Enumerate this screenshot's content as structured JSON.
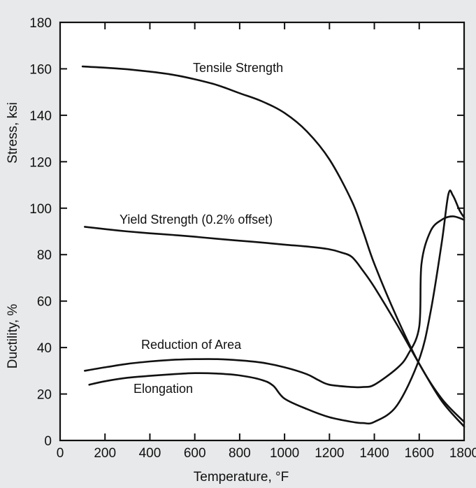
{
  "chart_data": {
    "type": "line",
    "xlabel": "Temperature, °F",
    "ylabel_upper": "Stress, ksi",
    "ylabel_lower": "Ductility, %",
    "xlim": [
      0,
      1800
    ],
    "ylim": [
      0,
      180
    ],
    "x_ticks": [
      0,
      200,
      400,
      600,
      800,
      1000,
      1200,
      1400,
      1600,
      1800
    ],
    "y_ticks": [
      0,
      20,
      40,
      60,
      80,
      100,
      120,
      140,
      160,
      180
    ],
    "grid": false,
    "series": [
      {
        "name": "Tensile Strength",
        "x": [
          100,
          200,
          300,
          400,
          500,
          600,
          700,
          800,
          900,
          1000,
          1100,
          1200,
          1300,
          1350,
          1400,
          1500,
          1600,
          1700,
          1800
        ],
        "y": [
          161,
          160.5,
          159.8,
          158.8,
          157.5,
          155.5,
          153,
          149.5,
          146,
          141,
          133,
          121,
          103,
          90,
          76,
          53,
          33,
          18,
          8
        ]
      },
      {
        "name": "Yield Strength (0.2% offset)",
        "x": [
          110,
          200,
          300,
          400,
          500,
          600,
          700,
          800,
          900,
          1000,
          1100,
          1200,
          1250,
          1300,
          1350,
          1400,
          1500,
          1600,
          1700,
          1800
        ],
        "y": [
          92,
          91,
          90,
          89.2,
          88.5,
          87.7,
          86.8,
          86,
          85.2,
          84.3,
          83.5,
          82.3,
          81,
          79,
          73,
          66,
          50,
          33,
          17,
          6
        ]
      },
      {
        "name": "Reduction of Area",
        "x": [
          110,
          200,
          300,
          400,
          500,
          600,
          700,
          800,
          900,
          1000,
          1100,
          1150,
          1200,
          1300,
          1350,
          1400,
          1500,
          1550,
          1600,
          1610,
          1650,
          1700,
          1750,
          1800
        ],
        "y": [
          30,
          31.5,
          33,
          34,
          34.7,
          35,
          35,
          34.5,
          33.5,
          31.5,
          28.5,
          26,
          24,
          23,
          23,
          24,
          31,
          37,
          49,
          76,
          90,
          95,
          96.5,
          95
        ]
      },
      {
        "name": "Elongation",
        "x": [
          130,
          200,
          300,
          400,
          500,
          600,
          700,
          800,
          900,
          950,
          1000,
          1100,
          1200,
          1300,
          1350,
          1400,
          1500,
          1600,
          1650,
          1700,
          1730,
          1750,
          1780,
          1800
        ],
        "y": [
          24,
          25.5,
          27,
          27.8,
          28.5,
          29,
          28.8,
          28,
          26,
          23.5,
          18,
          13.5,
          10,
          8,
          7.5,
          8,
          15,
          35,
          55,
          85,
          106,
          105.5,
          99,
          96
        ]
      }
    ],
    "annotations": [
      "Tensile Strength",
      "Yield Strength (0.2% offset)",
      "Reduction of Area",
      "Elongation"
    ]
  }
}
